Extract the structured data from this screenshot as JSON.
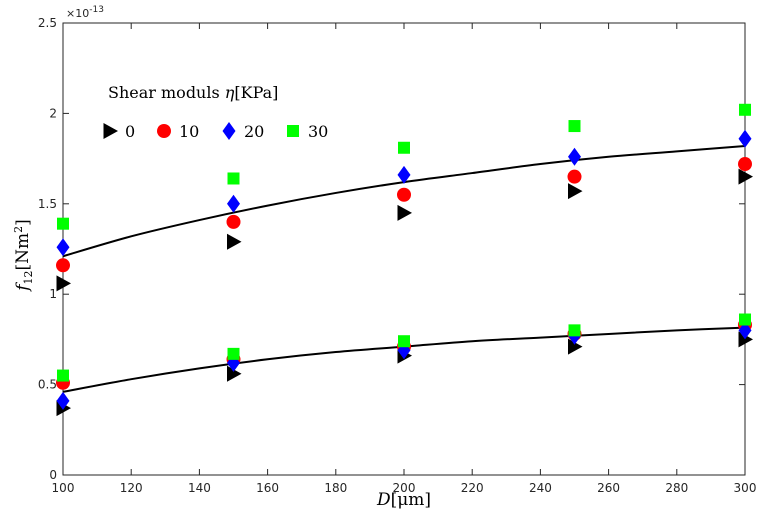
{
  "chart_data": {
    "type": "scatter",
    "xlabel_var": "D",
    "xlabel_unit": "[μm]",
    "ylabel_var": "f",
    "ylabel_sub": "12",
    "ylabel_unit": "[Nm",
    "ylabel_sup": "2",
    "ylabel_close": "]",
    "y_exponent_base": "×10",
    "y_exponent_power": "-13",
    "xlim": [
      100,
      300
    ],
    "ylim": [
      0,
      2.5
    ],
    "x_ticks": [
      "100",
      "120",
      "140",
      "160",
      "180",
      "200",
      "220",
      "240",
      "260",
      "280",
      "300"
    ],
    "y_ticks": [
      "0",
      "0.5",
      "1",
      "1.5",
      "2",
      "2.5"
    ],
    "grid": false,
    "legend": {
      "title_text": "Shear moduls ",
      "title_var": "η",
      "title_unit": "[KPa]",
      "placement": "top-left",
      "entries": [
        "0",
        "10",
        "20",
        "30"
      ]
    },
    "series": [
      {
        "name": "0",
        "marker": "triangle-right",
        "color": "#000000",
        "x": [
          100,
          150,
          200,
          250,
          300,
          100,
          150,
          200,
          250,
          300
        ],
        "y": [
          1.06,
          1.29,
          1.45,
          1.57,
          1.65,
          0.37,
          0.56,
          0.66,
          0.71,
          0.75
        ]
      },
      {
        "name": "10",
        "marker": "circle",
        "color": "#ff0000",
        "x": [
          100,
          150,
          200,
          250,
          300,
          100,
          150,
          200,
          250,
          300
        ],
        "y": [
          1.16,
          1.4,
          1.55,
          1.65,
          1.72,
          0.51,
          0.64,
          0.71,
          0.78,
          0.83
        ]
      },
      {
        "name": "20",
        "marker": "diamond",
        "color": "#0000ff",
        "x": [
          100,
          150,
          200,
          250,
          300,
          100,
          150,
          200,
          250,
          300
        ],
        "y": [
          1.26,
          1.5,
          1.66,
          1.76,
          1.86,
          0.41,
          0.62,
          0.69,
          0.77,
          0.8
        ]
      },
      {
        "name": "30",
        "marker": "square",
        "color": "#00ff00",
        "x": [
          100,
          150,
          200,
          250,
          300,
          100,
          150,
          200,
          250,
          300
        ],
        "y": [
          1.39,
          1.64,
          1.81,
          1.93,
          2.02,
          0.55,
          0.67,
          0.74,
          0.8,
          0.86
        ]
      }
    ],
    "fit_curves": [
      {
        "color": "#000000",
        "x": [
          100,
          120,
          140,
          160,
          180,
          200,
          220,
          240,
          260,
          280,
          300
        ],
        "y": [
          1.21,
          1.32,
          1.41,
          1.49,
          1.56,
          1.62,
          1.67,
          1.72,
          1.76,
          1.79,
          1.82
        ]
      },
      {
        "color": "#000000",
        "x": [
          100,
          120,
          140,
          160,
          180,
          200,
          220,
          240,
          260,
          280,
          300
        ],
        "y": [
          0.46,
          0.53,
          0.59,
          0.64,
          0.68,
          0.71,
          0.74,
          0.76,
          0.78,
          0.8,
          0.815
        ]
      }
    ]
  }
}
